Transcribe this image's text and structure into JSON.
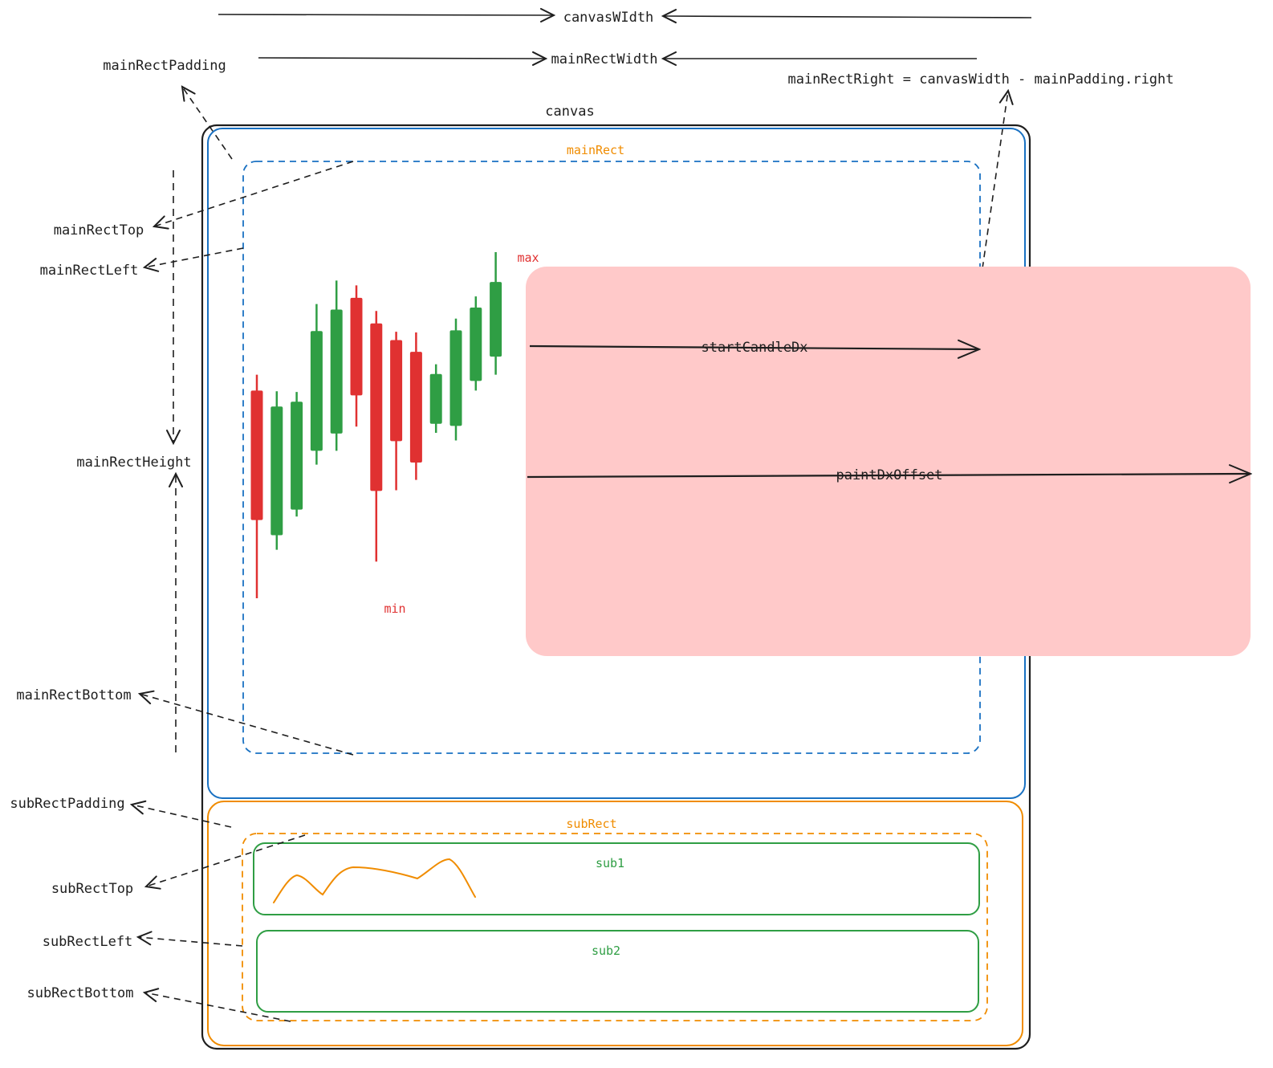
{
  "labels": {
    "canvas_width": "canvasWIdth",
    "main_rect_width": "mainRectWidth",
    "main_rect_padding": "mainRectPadding",
    "main_rect_right": "mainRectRight = canvasWidth - mainPadding.right",
    "canvas": "canvas",
    "main_rect": "mainRect",
    "main_rect_top": "mainRectTop",
    "main_rect_left": "mainRectLeft",
    "main_rect_height": "mainRectHeight",
    "main_rect_bottom": "mainRectBottom",
    "max": "max",
    "min": "min",
    "start_candle_dx": "startCandleDx",
    "paint_dx_offset": "paintDxOffset",
    "sub_rect_padding": "subRectPadding",
    "sub_rect": "subRect",
    "sub_rect_top": "subRectTop",
    "sub_rect_left": "subRectLeft",
    "sub_rect_bottom": "subRectBottom",
    "sub1": "sub1",
    "sub2": "sub2"
  },
  "candles": [
    {
      "dir": "down",
      "open": 500,
      "close": 313,
      "high": 523,
      "low": 200
    },
    {
      "dir": "up",
      "open": 291,
      "close": 477,
      "high": 499,
      "low": 270
    },
    {
      "dir": "up",
      "open": 328,
      "close": 484,
      "high": 498,
      "low": 318
    },
    {
      "dir": "up",
      "open": 413,
      "close": 586,
      "high": 625,
      "low": 393
    },
    {
      "dir": "up",
      "open": 438,
      "close": 617,
      "high": 659,
      "low": 413
    },
    {
      "dir": "down",
      "open": 634,
      "close": 493,
      "high": 652,
      "low": 448
    },
    {
      "dir": "down",
      "open": 597,
      "close": 355,
      "high": 615,
      "low": 253
    },
    {
      "dir": "down",
      "open": 573,
      "close": 427,
      "high": 585,
      "low": 356
    },
    {
      "dir": "down",
      "open": 556,
      "close": 396,
      "high": 584,
      "low": 371
    },
    {
      "dir": "up",
      "open": 452,
      "close": 524,
      "high": 538,
      "low": 439
    },
    {
      "dir": "up",
      "open": 449,
      "close": 587,
      "high": 604,
      "low": 428
    },
    {
      "dir": "up",
      "open": 514,
      "close": 620,
      "high": 636,
      "low": 500
    },
    {
      "dir": "up",
      "open": 549,
      "close": 657,
      "high": 700,
      "low": 523
    }
  ],
  "colors": {
    "up": "#2f9e44",
    "down": "#e03131",
    "canvas_border": "#1e1e1e",
    "main_rect": "#1971c2",
    "sub_rect": "#f08c00",
    "highlight": "#ffc9c9",
    "sub_panel": "#2f9e44"
  }
}
